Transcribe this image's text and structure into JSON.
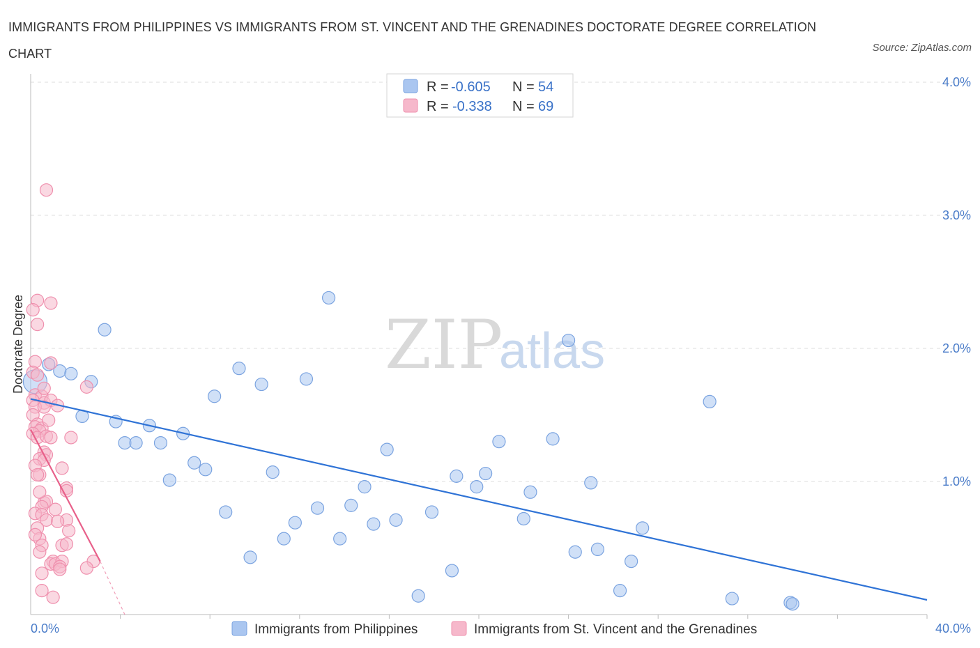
{
  "title": "IMMIGRANTS FROM PHILIPPINES VS IMMIGRANTS FROM ST. VINCENT AND THE GRENADINES DOCTORATE DEGREE CORRELATION CHART",
  "source": "Source: ZipAtlas.com",
  "watermark": {
    "zip": "ZIP",
    "atlas": "atlas"
  },
  "colors": {
    "blue_fill": "#aac6f0",
    "blue_stroke": "#7aa3e0",
    "blue_line": "#2f73d6",
    "pink_fill": "#f6b8cb",
    "pink_stroke": "#ef8fad",
    "pink_line": "#e8608a",
    "grid": "#dddddd",
    "axis_text": "#4a7cc9"
  },
  "legend": {
    "rows": [
      {
        "r_label": "R =",
        "r_value": "-0.605",
        "n_label": "N =",
        "n_value": "54",
        "color": "blue"
      },
      {
        "r_label": "R =",
        "r_value": "-0.338",
        "n_label": "N =",
        "n_value": "69",
        "color": "pink"
      }
    ]
  },
  "chart_data": {
    "type": "scatter",
    "title": "IMMIGRANTS FROM PHILIPPINES VS IMMIGRANTS FROM ST. VINCENT AND THE GRENADINES DOCTORATE DEGREE CORRELATION CHART",
    "xlabel": "",
    "ylabel": "Doctorate Degree",
    "xlim": [
      0,
      40
    ],
    "ylim": [
      0,
      4
    ],
    "x_tick_labels": [
      "0.0%",
      "40.0%"
    ],
    "y_ticks": [
      1,
      2,
      3,
      4
    ],
    "y_tick_labels": [
      "1.0%",
      "2.0%",
      "3.0%",
      "4.0%"
    ],
    "grid": true,
    "series": [
      {
        "name": "Immigrants from Philippines",
        "color": "blue",
        "trend": {
          "x": [
            0,
            40
          ],
          "y": [
            1.62,
            0.11
          ]
        },
        "points": [
          [
            0.2,
            1.75
          ],
          [
            0.8,
            1.88
          ],
          [
            1.3,
            1.83
          ],
          [
            1.8,
            1.81
          ],
          [
            2.3,
            1.49
          ],
          [
            2.7,
            1.75
          ],
          [
            3.3,
            2.14
          ],
          [
            3.8,
            1.45
          ],
          [
            4.2,
            1.29
          ],
          [
            4.7,
            1.29
          ],
          [
            5.3,
            1.42
          ],
          [
            5.8,
            1.29
          ],
          [
            6.2,
            1.01
          ],
          [
            6.8,
            1.36
          ],
          [
            7.3,
            1.14
          ],
          [
            7.8,
            1.09
          ],
          [
            8.2,
            1.64
          ],
          [
            8.7,
            0.77
          ],
          [
            9.3,
            1.85
          ],
          [
            9.8,
            0.43
          ],
          [
            10.3,
            1.73
          ],
          [
            10.8,
            1.07
          ],
          [
            11.3,
            0.57
          ],
          [
            11.8,
            0.69
          ],
          [
            12.3,
            1.77
          ],
          [
            12.8,
            0.8
          ],
          [
            13.3,
            2.38
          ],
          [
            13.8,
            0.57
          ],
          [
            14.3,
            0.82
          ],
          [
            14.9,
            0.96
          ],
          [
            15.3,
            0.68
          ],
          [
            15.9,
            1.24
          ],
          [
            16.3,
            0.71
          ],
          [
            17.3,
            0.14
          ],
          [
            17.9,
            0.77
          ],
          [
            18.8,
            0.33
          ],
          [
            19.0,
            1.04
          ],
          [
            19.9,
            0.96
          ],
          [
            20.3,
            1.06
          ],
          [
            20.9,
            1.3
          ],
          [
            22.3,
            0.92
          ],
          [
            22.0,
            0.72
          ],
          [
            23.3,
            1.32
          ],
          [
            24.0,
            2.06
          ],
          [
            24.3,
            0.47
          ],
          [
            25.0,
            0.99
          ],
          [
            25.3,
            0.49
          ],
          [
            26.3,
            0.18
          ],
          [
            26.8,
            0.4
          ],
          [
            27.3,
            0.65
          ],
          [
            30.3,
            1.6
          ],
          [
            31.3,
            0.12
          ],
          [
            33.9,
            0.09
          ],
          [
            34.0,
            0.08
          ]
        ]
      },
      {
        "name": "Immigrants from St. Vincent and the Grenadines",
        "color": "pink",
        "trend": {
          "x": [
            0,
            3.1
          ],
          "y": [
            1.39,
            0.4
          ]
        },
        "trend_dashed": {
          "x": [
            3.1,
            4.2
          ],
          "y": [
            0.4,
            0.0
          ]
        },
        "points": [
          [
            0.7,
            3.19
          ],
          [
            0.3,
            2.36
          ],
          [
            0.9,
            2.34
          ],
          [
            0.1,
            2.29
          ],
          [
            0.3,
            2.18
          ],
          [
            0.2,
            1.9
          ],
          [
            0.9,
            1.89
          ],
          [
            0.1,
            1.82
          ],
          [
            0.3,
            1.8
          ],
          [
            2.5,
            1.71
          ],
          [
            0.2,
            1.65
          ],
          [
            0.5,
            1.64
          ],
          [
            0.1,
            1.61
          ],
          [
            0.6,
            1.59
          ],
          [
            0.9,
            1.61
          ],
          [
            1.2,
            1.57
          ],
          [
            0.2,
            1.56
          ],
          [
            0.6,
            1.56
          ],
          [
            0.1,
            1.5
          ],
          [
            0.3,
            1.43
          ],
          [
            0.2,
            1.41
          ],
          [
            0.5,
            1.4
          ],
          [
            0.4,
            1.38
          ],
          [
            0.1,
            1.36
          ],
          [
            0.3,
            1.33
          ],
          [
            0.7,
            1.34
          ],
          [
            0.9,
            1.33
          ],
          [
            1.8,
            1.33
          ],
          [
            0.6,
            1.22
          ],
          [
            0.7,
            1.2
          ],
          [
            0.4,
            1.17
          ],
          [
            0.6,
            1.16
          ],
          [
            0.2,
            1.12
          ],
          [
            1.4,
            1.1
          ],
          [
            0.4,
            1.05
          ],
          [
            1.6,
            0.95
          ],
          [
            1.6,
            0.93
          ],
          [
            0.6,
            0.84
          ],
          [
            0.7,
            0.85
          ],
          [
            0.5,
            0.81
          ],
          [
            1.1,
            0.79
          ],
          [
            0.2,
            0.76
          ],
          [
            0.5,
            0.75
          ],
          [
            0.7,
            0.71
          ],
          [
            1.6,
            0.71
          ],
          [
            0.3,
            0.65
          ],
          [
            1.7,
            0.63
          ],
          [
            0.4,
            0.57
          ],
          [
            0.5,
            0.52
          ],
          [
            1.4,
            0.52
          ],
          [
            1.6,
            0.53
          ],
          [
            0.4,
            0.47
          ],
          [
            1.0,
            0.4
          ],
          [
            0.9,
            0.38
          ],
          [
            1.1,
            0.38
          ],
          [
            1.4,
            0.4
          ],
          [
            2.8,
            0.4
          ],
          [
            1.3,
            0.36
          ],
          [
            1.3,
            0.34
          ],
          [
            2.5,
            0.35
          ],
          [
            0.5,
            0.31
          ],
          [
            0.5,
            0.18
          ],
          [
            1.0,
            0.13
          ],
          [
            0.2,
            0.6
          ],
          [
            0.4,
            0.92
          ],
          [
            0.8,
            1.46
          ],
          [
            0.3,
            1.05
          ],
          [
            1.2,
            0.7
          ],
          [
            0.6,
            1.7
          ]
        ]
      }
    ]
  },
  "bottom_legend": [
    {
      "label": "Immigrants from Philippines",
      "color": "blue"
    },
    {
      "label": "Immigrants from St. Vincent and the Grenadines",
      "color": "pink"
    }
  ]
}
